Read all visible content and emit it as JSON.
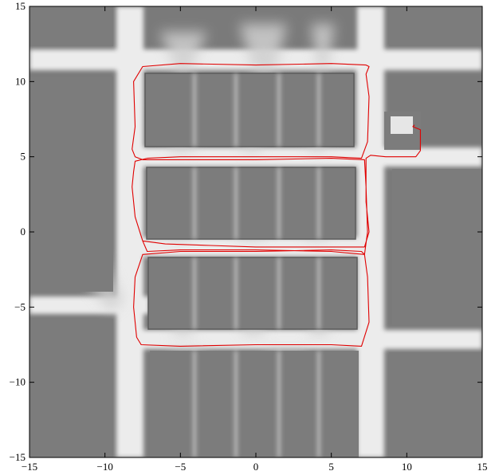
{
  "chart_data": {
    "type": "line",
    "title": "",
    "xlabel": "",
    "ylabel": "",
    "xlim": [
      -15,
      15
    ],
    "ylim": [
      -15,
      15
    ],
    "grid": false,
    "xticks": [
      -15,
      -10,
      -5,
      0,
      5,
      10,
      15
    ],
    "yticks": [
      -15,
      -10,
      -5,
      0,
      5,
      10,
      15
    ],
    "xtick_labels": [
      "−15",
      "−10",
      "−5",
      "0",
      "5",
      "10",
      "15"
    ],
    "ytick_labels": [
      "−15",
      "−10",
      "−5",
      "0",
      "5",
      "10",
      "15"
    ],
    "background": "grayscale occupancy map",
    "colors": {
      "trajectory": "#e00000",
      "obstacle": "#777777",
      "free_space": "#f2f2f2",
      "unknown": "#b4b4b4"
    },
    "series": [
      {
        "x": [
          10.5,
          10.4,
          10.9,
          10.9,
          10.6,
          9.8,
          8.6,
          7.6,
          7.3,
          7.3,
          7.5,
          7.2,
          5.0,
          0.0,
          -3.0,
          -6.0,
          -7.5,
          -8.0,
          -8.2,
          -8.1,
          -8.0,
          -7.2,
          -5.0,
          0.0,
          5.0,
          7.0,
          7.4,
          7.5,
          7.3,
          7.5,
          7.3,
          5.0,
          0.0,
          -5.0,
          -7.5,
          -8.1,
          -8.0,
          -8.2,
          -8.0,
          -7.5,
          -5.0,
          0.0,
          5.0,
          7.2,
          7.3,
          7.4,
          7.2,
          7.0,
          5.0,
          0.0,
          -5.0,
          -7.5,
          -8.0,
          -8.1,
          -7.9,
          -7.6,
          -5.0,
          0.0,
          5.0,
          7.0,
          7.5,
          7.4,
          7.2,
          5.0,
          0.0,
          -5.0,
          -7.2,
          -7.5
        ],
        "y": [
          7.1,
          7.0,
          6.8,
          5.4,
          5.0,
          5.0,
          5.0,
          5.1,
          4.9,
          2.0,
          0.0,
          -1.0,
          -1.0,
          -1.0,
          -0.9,
          -0.8,
          -0.6,
          1.0,
          3.0,
          4.0,
          4.7,
          4.9,
          5.0,
          5.0,
          5.0,
          4.9,
          6.0,
          9.0,
          10.5,
          11.0,
          11.1,
          11.2,
          11.1,
          11.2,
          11.0,
          10.0,
          7.0,
          5.5,
          5.0,
          4.8,
          4.8,
          4.8,
          4.9,
          4.8,
          3.0,
          0.0,
          -1.5,
          -1.3,
          -1.2,
          -1.3,
          -1.3,
          -1.5,
          -3.0,
          -5.0,
          -7.0,
          -7.5,
          -7.6,
          -7.5,
          -7.5,
          -7.6,
          -6.0,
          -3.0,
          -1.5,
          -1.3,
          -1.2,
          -1.2,
          -1.3,
          -0.6
        ]
      }
    ]
  }
}
